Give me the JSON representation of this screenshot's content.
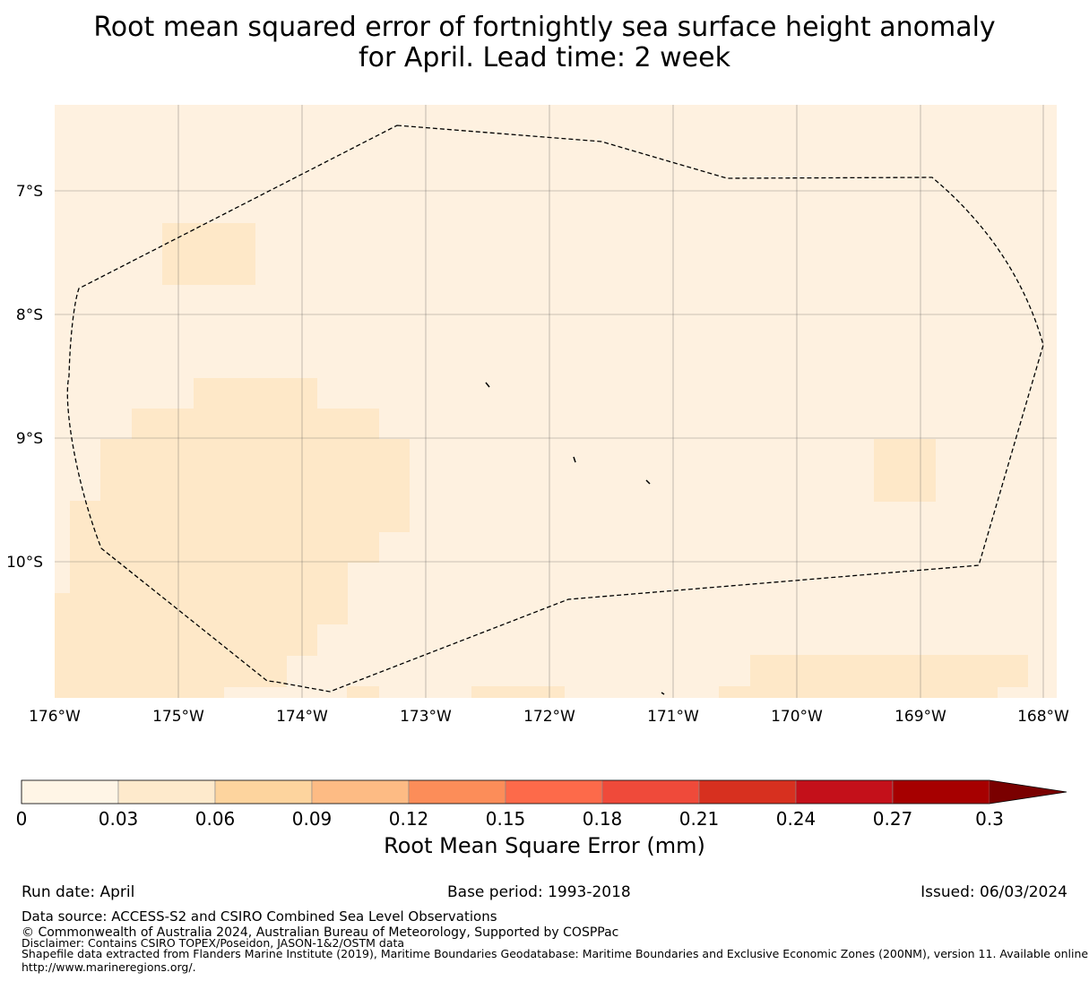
{
  "title": {
    "line1": "Root mean squared error of fortnightly sea surface height anomaly",
    "line2": "for April. Lead time: 2 week"
  },
  "map": {
    "lat_labels": [
      "7°S",
      "8°S",
      "9°S",
      "10°S"
    ],
    "lon_labels": [
      "176°W",
      "175°W",
      "174°W",
      "173°W",
      "172°W",
      "171°W",
      "170°W",
      "169°W",
      "168°W"
    ],
    "colors": {
      "background": "#fef1e0",
      "level1": "#fee8c8",
      "boundary": "#000000"
    }
  },
  "colorbar": {
    "ticks": [
      "0",
      "0.03",
      "0.06",
      "0.09",
      "0.12",
      "0.15",
      "0.18",
      "0.21",
      "0.24",
      "0.27",
      "0.3"
    ],
    "colors": [
      "#fff5e6",
      "#feeacc",
      "#fdd49e",
      "#fdbb84",
      "#fc8d59",
      "#fd6a4a",
      "#ef4a3a",
      "#d7301f",
      "#c4101a",
      "#a60000",
      "#7a0000"
    ],
    "label": "Root Mean Square Error (mm)"
  },
  "footer": {
    "run_date": "Run date: April",
    "base_period": "Base period: 1993-2018",
    "issued": "Issued: 06/03/2024",
    "data_source": "Data source: ACCESS-S2 and CSIRO Combined Sea Level Observations",
    "copyright": "© Commonwealth of Australia 2024, Australian Bureau of Meteorology, Supported by COSPPac",
    "disclaimer": "Disclaimer: Contains CSIRO TOPEX/Poseidon, JASON-1&2/OSTM data",
    "shapefile": "Shapefile data extracted from Flanders Marine Institute (2019), Maritime Boundaries Geodatabase: Maritime Boundaries and Exclusive Economic Zones (200NM), version 11. Available online at",
    "url": "http://www.marineregions.org/."
  }
}
